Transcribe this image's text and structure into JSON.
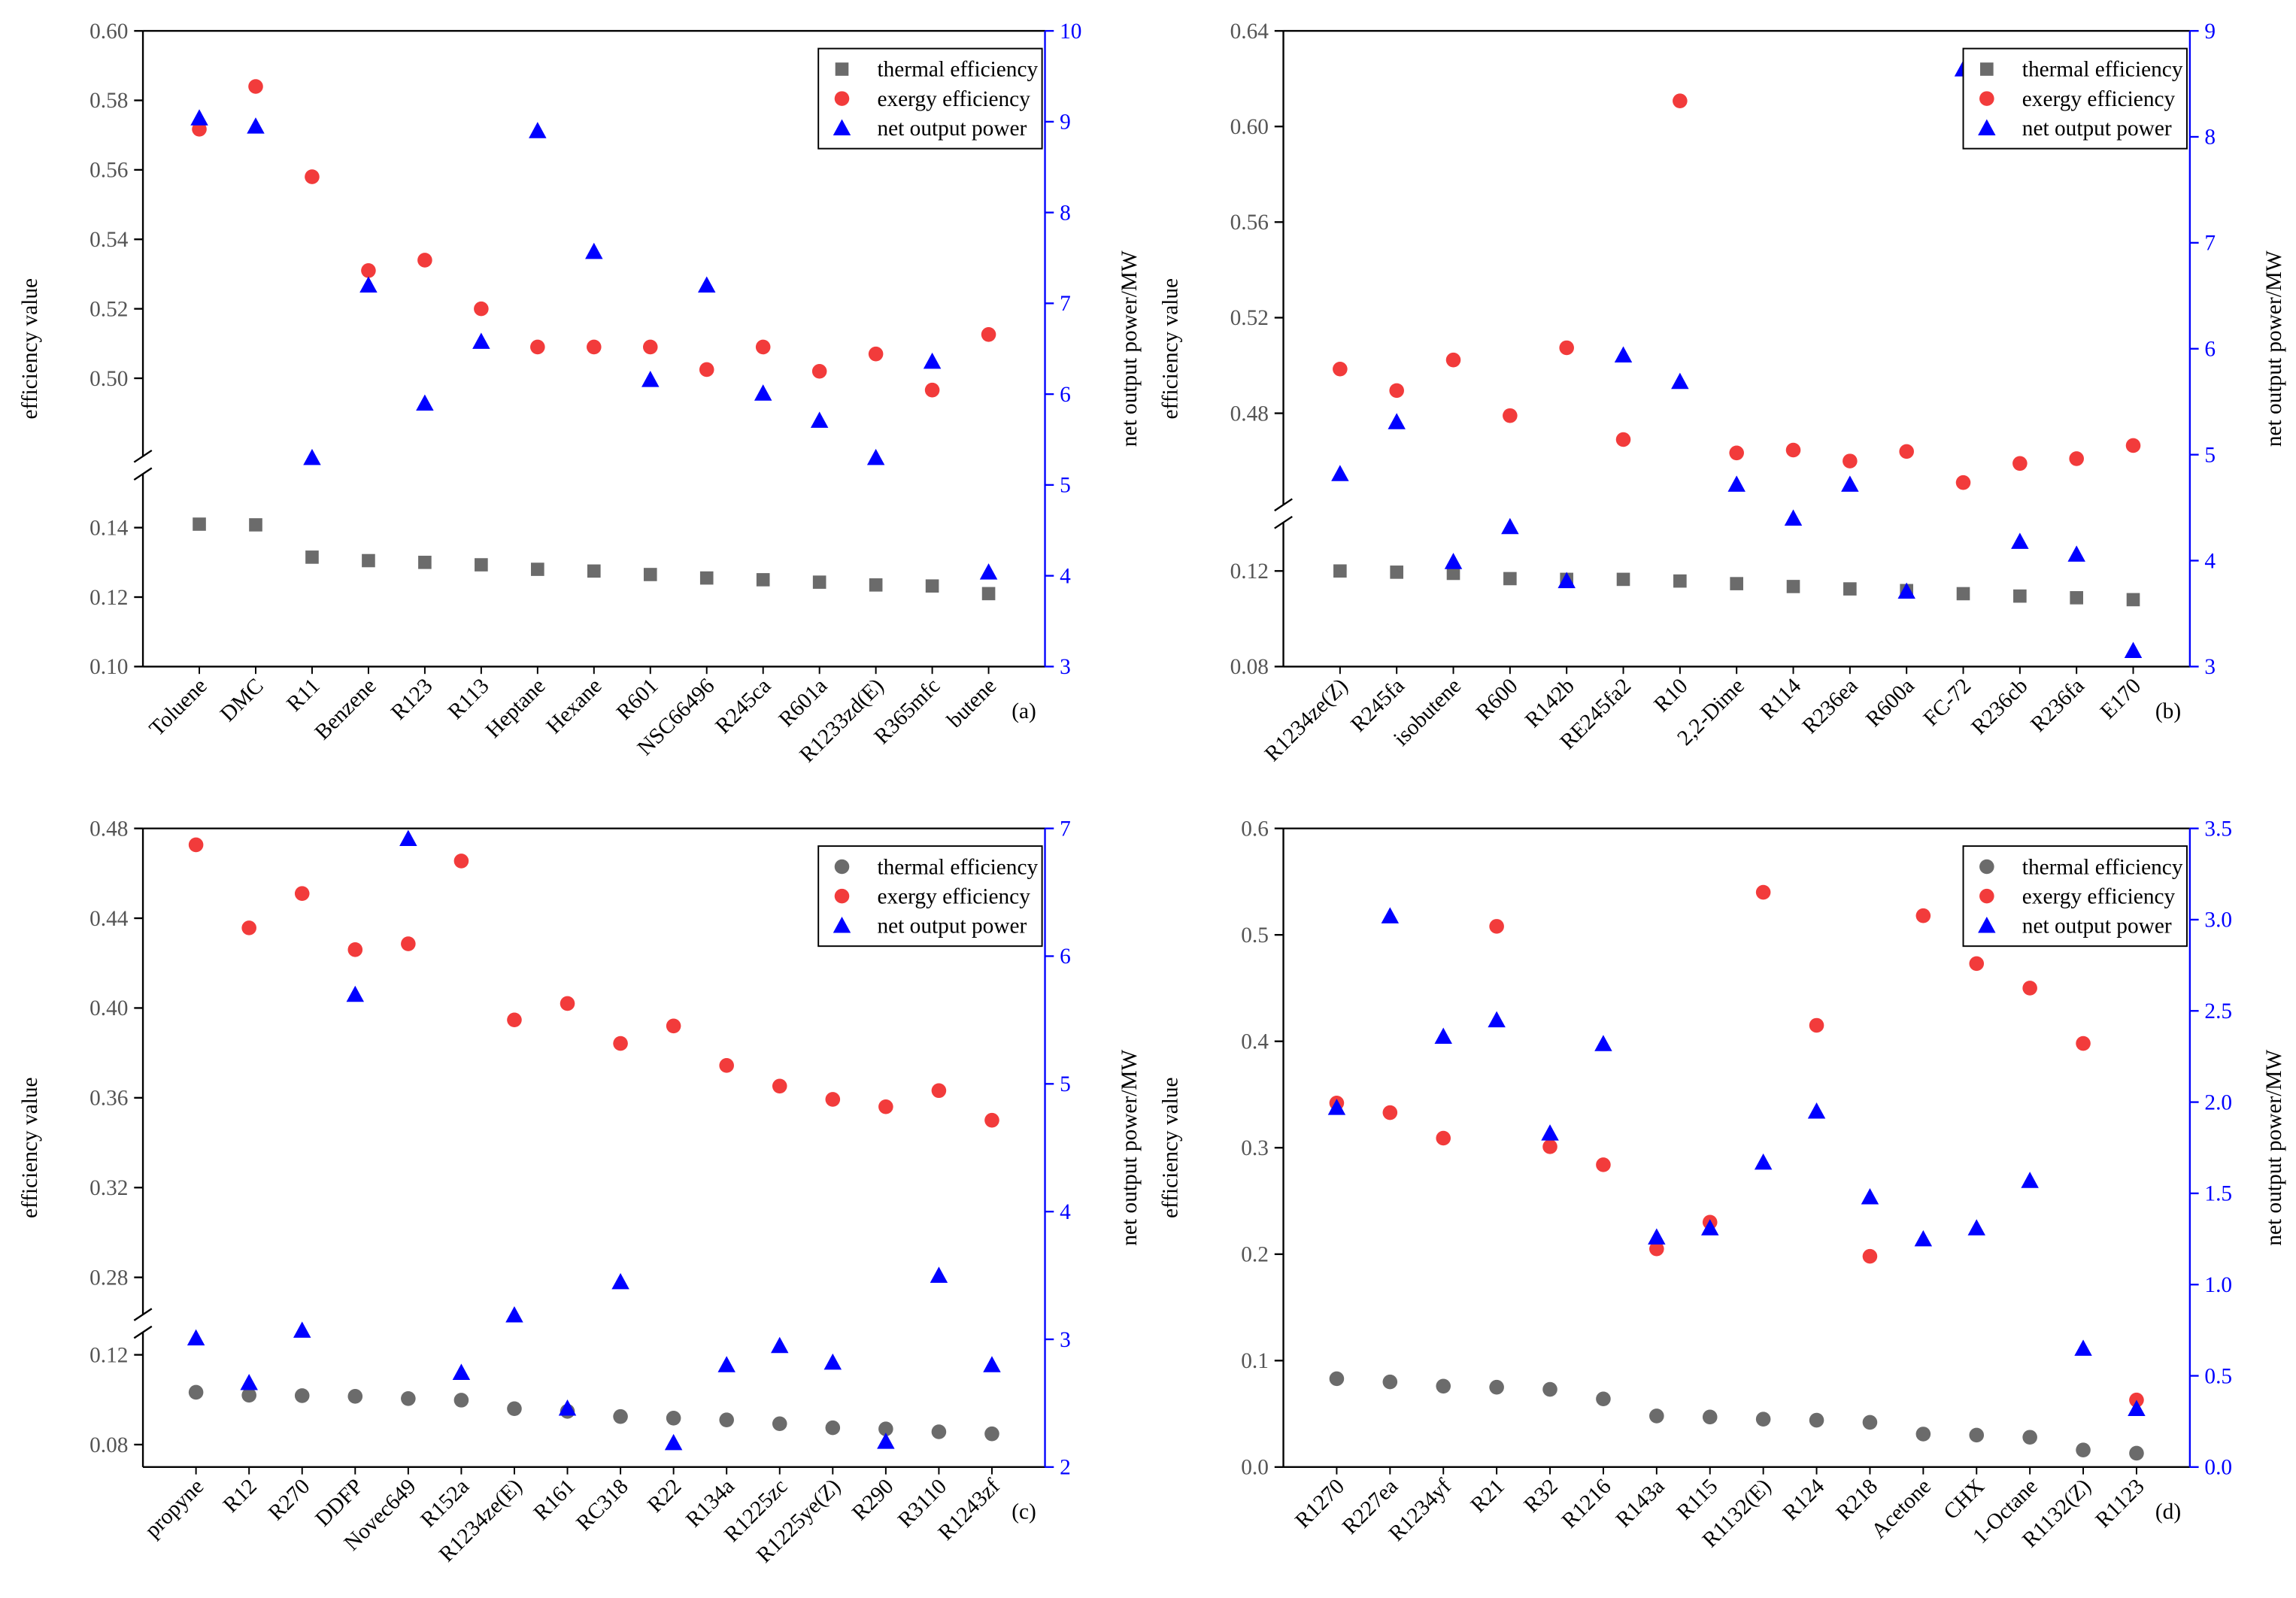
{
  "chart_data": [
    {
      "type": "scatter",
      "panel_label": "(a)",
      "ylabel": "efficiency value",
      "y2label": "net output power/MW",
      "legend": "upper right",
      "categories": [
        "Toluene",
        "DMC",
        "R11",
        "Benzene",
        "R123",
        "R113",
        "Heptane",
        "Hexane",
        "R601",
        "NSC66496",
        "R245ca",
        "R601a",
        "R1233zd(E)",
        "R365mfc",
        "butene"
      ],
      "ylim": [
        0.1,
        0.6
      ],
      "ybreak": [
        0.158,
        0.475
      ],
      "yticks": [
        {
          "value": 0.1,
          "label": "0.10"
        },
        0.12,
        0.14,
        {
          "value": 0.5,
          "label": "0.50"
        },
        0.52,
        0.54,
        0.56,
        0.58,
        {
          "value": 0.6,
          "label": "0.60"
        }
      ],
      "y2lim": [
        3,
        10
      ],
      "y2ticks": [
        3,
        4,
        5,
        6,
        7,
        8,
        9,
        10
      ],
      "series": [
        {
          "name": "thermal efficiency",
          "color": "#6b6b6b",
          "marker": "square",
          "values": [
            0.141,
            0.1408,
            0.1315,
            0.1305,
            0.13,
            0.1293,
            0.128,
            0.1275,
            0.1265,
            0.1255,
            0.125,
            0.1243,
            0.1235,
            0.1232,
            0.121
          ]
        },
        {
          "name": "exergy efficiency",
          "color": "#f23b3b",
          "marker": "circle",
          "values": [
            0.5717,
            0.584,
            0.558,
            0.531,
            0.534,
            0.52,
            0.509,
            0.509,
            0.509,
            0.5025,
            0.509,
            0.502,
            0.507,
            0.4966,
            0.5126
          ]
        },
        {
          "name": "net output power",
          "color": "#0000ff",
          "marker": "triangle",
          "axis": "y2",
          "values": [
            9.04,
            8.95,
            5.3,
            7.2,
            5.9,
            6.58,
            8.9,
            7.57,
            6.16,
            7.2,
            6.01,
            5.71,
            5.3,
            6.36,
            4.04
          ]
        }
      ]
    },
    {
      "type": "scatter",
      "panel_label": "(b)",
      "ylabel": "efficiency value",
      "y2label": "net output power/MW",
      "legend": "upper right",
      "categories": [
        "R1234ze(Z)",
        "R245fa",
        "isobutene",
        "R600",
        "R142b",
        "RE245fa2",
        "R10",
        "2,2-Dime",
        "R114",
        "R236ea",
        "R600a",
        "FC-72",
        "R236cb",
        "R236fa",
        "E170"
      ],
      "ylim": [
        0.08,
        0.64
      ],
      "ybreak": [
        0.144,
        0.438
      ],
      "yticks": [
        0.08,
        0.12,
        0.48,
        0.52,
        0.56,
        {
          "value": 0.6,
          "label": "0.60"
        },
        0.64
      ],
      "y2lim": [
        3,
        9
      ],
      "y2ticks": [
        3,
        4,
        5,
        6,
        7,
        8,
        9
      ],
      "series": [
        {
          "name": "thermal efficiency",
          "color": "#6b6b6b",
          "marker": "square",
          "values": [
            0.12,
            0.1195,
            0.119,
            0.1168,
            0.1165,
            0.1165,
            0.1158,
            0.1147,
            0.1135,
            0.1125,
            0.1118,
            0.1105,
            0.1095,
            0.1088,
            0.108
          ]
        },
        {
          "name": "exergy efficiency",
          "color": "#f23b3b",
          "marker": "circle",
          "values": [
            0.4985,
            0.4895,
            0.5023,
            0.479,
            0.5074,
            0.469,
            0.6107,
            0.4634,
            0.4646,
            0.46,
            0.464,
            0.451,
            0.459,
            0.461,
            0.4665
          ]
        },
        {
          "name": "net output power",
          "color": "#0000ff",
          "marker": "triangle",
          "axis": "y2",
          "values": [
            4.82,
            5.31,
            3.99,
            4.32,
            3.81,
            5.94,
            5.69,
            4.72,
            4.4,
            4.72,
            3.71,
            8.64,
            4.18,
            4.06,
            3.15
          ]
        }
      ]
    },
    {
      "type": "scatter",
      "panel_label": "(c)",
      "ylabel": "efficiency value",
      "y2label": "net output power/MW",
      "legend": "upper right",
      "categories": [
        "propyne",
        "R12",
        "R270",
        "DDFP",
        "Novec649",
        "R152a",
        "R1234ze(E)",
        "R161",
        "RC318",
        "R22",
        "R134a",
        "R1225zc",
        "R1225ye(Z)",
        "R290",
        "R3110",
        "R1243zf"
      ],
      "ylim": [
        0.07,
        0.48
      ],
      "ybreak": [
        0.134,
        0.2595
      ],
      "yticks": [
        0.08,
        0.12,
        0.28,
        0.32,
        0.36,
        {
          "value": 0.4,
          "label": "0.40"
        },
        0.44,
        0.48
      ],
      "y2lim": [
        2,
        7
      ],
      "y2ticks": [
        2,
        3,
        4,
        5,
        6,
        7
      ],
      "series": [
        {
          "name": "thermal efficiency",
          "color": "#6b6b6b",
          "marker": "circle",
          "values": [
            0.1033,
            0.102,
            0.1018,
            0.1015,
            0.1005,
            0.0998,
            0.096,
            0.0948,
            0.0925,
            0.0918,
            0.091,
            0.0893,
            0.0875,
            0.087,
            0.0857,
            0.0848
          ]
        },
        {
          "name": "exergy efficiency",
          "color": "#f23b3b",
          "marker": "circle",
          "values": [
            0.4727,
            0.4357,
            0.451,
            0.426,
            0.4286,
            0.4655,
            0.3947,
            0.402,
            0.3842,
            0.392,
            0.3744,
            0.3652,
            0.3593,
            0.356,
            0.3632,
            0.35
          ]
        },
        {
          "name": "net output power",
          "color": "#0000ff",
          "marker": "triangle",
          "axis": "y2",
          "values": [
            3.01,
            2.66,
            3.07,
            5.7,
            6.92,
            2.74,
            3.19,
            2.46,
            3.45,
            2.19,
            2.8,
            2.95,
            2.82,
            2.2,
            3.5,
            2.8
          ]
        }
      ]
    },
    {
      "type": "scatter",
      "panel_label": "(d)",
      "ylabel": "efficiency value",
      "y2label": "net output power/MW",
      "legend": "upper right",
      "categories": [
        "R1270",
        "R227ea",
        "R1234yf",
        "R21",
        "R32",
        "R1216",
        "R143a",
        "R115",
        "R1132(E)",
        "R124",
        "R218",
        "Acetone",
        "CHX",
        "1-Octane",
        "R1132(Z)",
        "R1123"
      ],
      "ylim": [
        0.0,
        0.6
      ],
      "yticks": [
        {
          "value": 0.0,
          "label": "0.0"
        },
        0.1,
        0.2,
        0.3,
        0.4,
        0.5,
        0.6
      ],
      "y2lim": [
        0.0,
        3.5
      ],
      "y2ticks": [
        {
          "value": 0.0,
          "label": "0.0"
        },
        0.5,
        {
          "value": 1.0,
          "label": "1.0"
        },
        1.5,
        {
          "value": 2.0,
          "label": "2.0"
        },
        2.5,
        {
          "value": 3.0,
          "label": "3.0"
        },
        3.5
      ],
      "series": [
        {
          "name": "thermal efficiency",
          "color": "#6b6b6b",
          "marker": "circle",
          "values": [
            0.083,
            0.08,
            0.076,
            0.075,
            0.073,
            0.064,
            0.048,
            0.047,
            0.045,
            0.044,
            0.042,
            0.031,
            0.03,
            0.028,
            0.016,
            0.013
          ]
        },
        {
          "name": "exergy efficiency",
          "color": "#f23b3b",
          "marker": "circle",
          "values": [
            0.342,
            0.333,
            0.309,
            0.508,
            0.301,
            0.284,
            0.205,
            0.23,
            0.54,
            0.415,
            0.198,
            0.518,
            0.473,
            0.45,
            0.398,
            0.063
          ]
        },
        {
          "name": "net output power",
          "color": "#0000ff",
          "marker": "triangle",
          "axis": "y2",
          "values": [
            1.97,
            3.02,
            2.36,
            2.45,
            1.83,
            2.32,
            1.26,
            1.31,
            1.67,
            1.95,
            1.48,
            1.25,
            1.31,
            1.57,
            0.65,
            0.32
          ]
        }
      ]
    }
  ]
}
